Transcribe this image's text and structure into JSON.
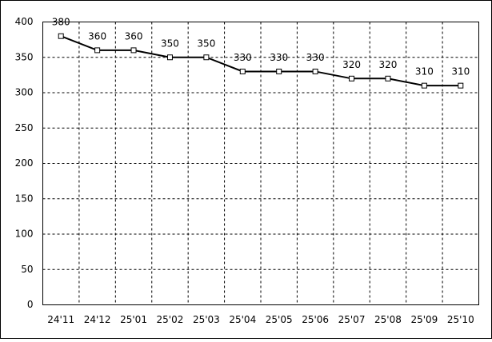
{
  "chart_data": {
    "type": "line",
    "categories": [
      "24'11",
      "24'12",
      "25'01",
      "25'02",
      "25'03",
      "25'04",
      "25'05",
      "25'06",
      "25'07",
      "25'08",
      "25'09",
      "25'10"
    ],
    "values": [
      380,
      360,
      360,
      350,
      350,
      330,
      330,
      330,
      320,
      320,
      310,
      310
    ],
    "color": "#000000",
    "ylim": [
      0,
      400
    ],
    "yticks": [
      0,
      50,
      100,
      150,
      200,
      250,
      300,
      350,
      400
    ],
    "grid": true
  }
}
